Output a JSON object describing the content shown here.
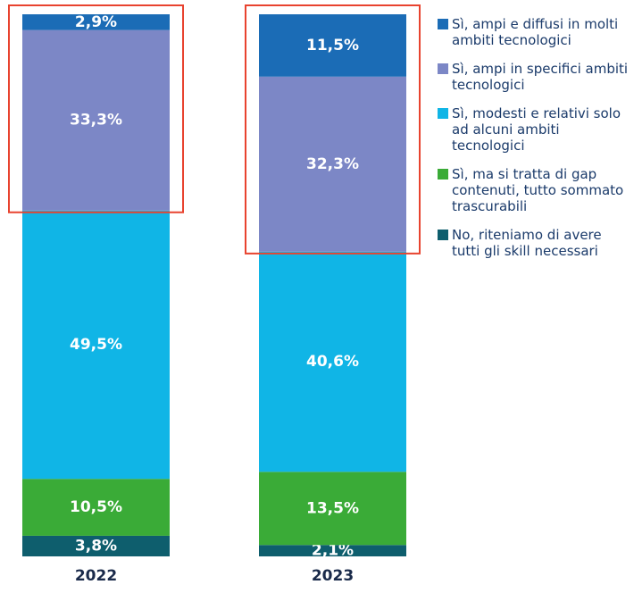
{
  "chart_data": {
    "type": "stacked_bar",
    "categories": [
      "2022",
      "2023"
    ],
    "ylim": [
      0,
      100
    ],
    "legend": "right",
    "series": [
      {
        "name": "Sì, ampi e diffusi in molti ambiti tecnologici",
        "color": "#1b6cb6",
        "values": [
          2.9,
          11.5
        ],
        "value_labels": [
          "2,9%",
          "11,5%"
        ]
      },
      {
        "name": "Sì, ampi in specifici ambiti tecnologici",
        "color": "#7c87c6",
        "values": [
          33.3,
          32.3
        ],
        "value_labels": [
          "33,3%",
          "32,3%"
        ]
      },
      {
        "name": "Sì, modesti e relativi solo ad alcuni ambiti tecnologici",
        "color": "#10b5e6",
        "values": [
          49.5,
          40.6
        ],
        "value_labels": [
          "49,5%",
          "40,6%"
        ]
      },
      {
        "name": "Sì, ma si tratta di gap contenuti, tutto sommato trascurabili",
        "color": "#3aab37",
        "values": [
          10.5,
          13.5
        ],
        "value_labels": [
          "10,5%",
          "13,5%"
        ]
      },
      {
        "name": "No, riteniamo di avere tutti gli skill necessari",
        "color": "#0e5e6d",
        "values": [
          3.8,
          2.1
        ],
        "value_labels": [
          "3,8%",
          "2,1%"
        ]
      }
    ]
  }
}
